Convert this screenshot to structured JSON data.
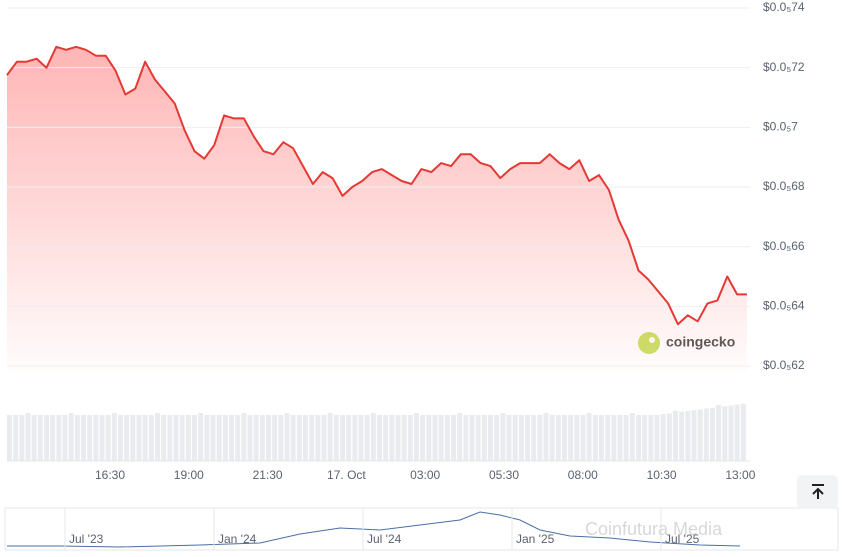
{
  "chart_data": {
    "type": "line",
    "ylim": [
      6.2e-07,
      7.4e-07
    ],
    "yticks": [
      {
        "value": 7.4e-07,
        "label": "$0.0₅74"
      },
      {
        "value": 7.2e-07,
        "label": "$0.0₅72"
      },
      {
        "value": 7e-07,
        "label": "$0.0₅7"
      },
      {
        "value": 6.8e-07,
        "label": "$0.0₅68"
      },
      {
        "value": 6.6e-07,
        "label": "$0.0₅66"
      },
      {
        "value": 6.4e-07,
        "label": "$0.0₅64"
      },
      {
        "value": 6.2e-07,
        "label": "$0.0₅62"
      }
    ],
    "xticks": [
      "16:30",
      "19:00",
      "21:30",
      "17. Oct",
      "03:00",
      "05:30",
      "08:00",
      "10:30",
      "13:00"
    ],
    "grid": true,
    "series": [
      {
        "color": "#e53935",
        "values": [
          7.175e-07,
          7.22e-07,
          7.22e-07,
          7.23e-07,
          7.2e-07,
          7.27e-07,
          7.26e-07,
          7.27e-07,
          7.26e-07,
          7.24e-07,
          7.24e-07,
          7.19e-07,
          7.11e-07,
          7.13e-07,
          7.22e-07,
          7.16e-07,
          7.12e-07,
          7.08e-07,
          6.99e-07,
          6.92e-07,
          6.895e-07,
          6.94e-07,
          7.04e-07,
          7.03e-07,
          7.03e-07,
          6.97e-07,
          6.92e-07,
          6.91e-07,
          6.95e-07,
          6.93e-07,
          6.87e-07,
          6.81e-07,
          6.85e-07,
          6.83e-07,
          6.77e-07,
          6.8e-07,
          6.82e-07,
          6.85e-07,
          6.86e-07,
          6.84e-07,
          6.82e-07,
          6.81e-07,
          6.86e-07,
          6.85e-07,
          6.88e-07,
          6.87e-07,
          6.91e-07,
          6.91e-07,
          6.88e-07,
          6.87e-07,
          6.83e-07,
          6.86e-07,
          6.88e-07,
          6.88e-07,
          6.88e-07,
          6.91e-07,
          6.88e-07,
          6.86e-07,
          6.89e-07,
          6.82e-07,
          6.84e-07,
          6.79e-07,
          6.69e-07,
          6.62e-07,
          6.52e-07,
          6.49e-07,
          6.45e-07,
          6.41e-07,
          6.34e-07,
          6.37e-07,
          6.35e-07,
          6.41e-07,
          6.42e-07,
          6.5e-07,
          6.44e-07,
          6.44e-07
        ]
      }
    ],
    "watermark": "coingecko",
    "navigator": {
      "labels": [
        "Jul '23",
        "Jan '24",
        "Jul '24",
        "Jan '25",
        "Jul '25"
      ]
    },
    "credit": "Coinfutura Media"
  }
}
